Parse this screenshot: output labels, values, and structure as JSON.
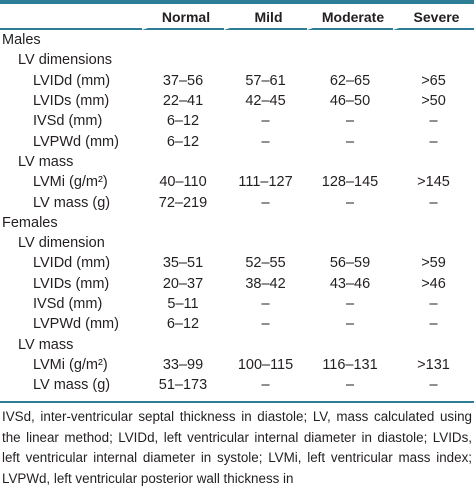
{
  "table": {
    "headers": [
      "",
      "Normal",
      "Mild",
      "Moderate",
      "Severe"
    ],
    "rows": [
      {
        "label": "Males",
        "level": 0,
        "values": [
          "",
          "",
          "",
          ""
        ]
      },
      {
        "label": "LV dimensions",
        "level": 1,
        "values": [
          "",
          "",
          "",
          ""
        ]
      },
      {
        "label": "LVIDd (mm)",
        "level": 2,
        "values": [
          "37–56",
          "57–61",
          "62–65",
          ">65"
        ]
      },
      {
        "label": "LVIDs (mm)",
        "level": 2,
        "values": [
          "22–41",
          "42–45",
          "46–50",
          ">50"
        ]
      },
      {
        "label": "IVSd (mm)",
        "level": 2,
        "values": [
          "6–12",
          "–",
          "–",
          "–"
        ]
      },
      {
        "label": "LVPWd (mm)",
        "level": 2,
        "values": [
          "6–12",
          "–",
          "–",
          "–"
        ]
      },
      {
        "label": "LV mass",
        "level": 1,
        "values": [
          "",
          "",
          "",
          ""
        ]
      },
      {
        "label": "LVMi (g/m²)",
        "level": 2,
        "values": [
          "40–110",
          "111–127",
          "128–145",
          ">145"
        ]
      },
      {
        "label": "LV mass (g)",
        "level": 2,
        "values": [
          "72–219",
          "–",
          "–",
          "–"
        ]
      },
      {
        "label": "Females",
        "level": 0,
        "values": [
          "",
          "",
          "",
          ""
        ]
      },
      {
        "label": "LV dimension",
        "level": 1,
        "values": [
          "",
          "",
          "",
          ""
        ]
      },
      {
        "label": "LVIDd (mm)",
        "level": 2,
        "values": [
          "35–51",
          "52–55",
          "56–59",
          ">59"
        ]
      },
      {
        "label": "LVIDs (mm)",
        "level": 2,
        "values": [
          "20–37",
          "38–42",
          "43–46",
          ">46"
        ]
      },
      {
        "label": "IVSd (mm)",
        "level": 2,
        "values": [
          "5–11",
          "–",
          "–",
          "–"
        ]
      },
      {
        "label": "LVPWd (mm)",
        "level": 2,
        "values": [
          "6–12",
          "–",
          "–",
          "–"
        ]
      },
      {
        "label": "LV mass",
        "level": 1,
        "values": [
          "",
          "",
          "",
          ""
        ]
      },
      {
        "label": "LVMi (g/m²)",
        "level": 2,
        "values": [
          "33–99",
          "100–115",
          "116–131",
          ">131"
        ]
      },
      {
        "label": "LV mass (g)",
        "level": 2,
        "values": [
          "51–173",
          "–",
          "–",
          "–"
        ]
      }
    ]
  },
  "footnote": "IVSd, inter-ventricular septal thickness in diastole; LV, mass calculated using the linear method; LVIDd, left ventricular internal diameter in diastole; LVIDs, left ventricular internal diameter in systole; LVMi, left ventricular mass index; LVPWd, left ventricular posterior wall thickness in",
  "colors": {
    "rule": "#2e7d96",
    "text": "#231f20"
  }
}
